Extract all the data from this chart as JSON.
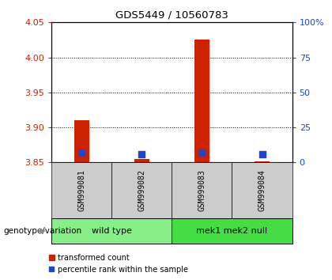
{
  "title": "GDS5449 / 10560783",
  "samples": [
    "GSM999081",
    "GSM999082",
    "GSM999083",
    "GSM999084"
  ],
  "transformed_counts": [
    3.91,
    3.855,
    4.025,
    3.851
  ],
  "percentile_ranks": [
    3.864,
    3.862,
    3.864,
    3.862
  ],
  "bar_base": 3.85,
  "ylim": [
    3.85,
    4.05
  ],
  "yticks": [
    3.85,
    3.9,
    3.95,
    4.0,
    4.05
  ],
  "right_yticks": [
    0,
    25,
    50,
    75,
    100
  ],
  "groups": [
    {
      "label": "wild type",
      "samples": [
        0,
        1
      ]
    },
    {
      "label": "mek1 mek2 null",
      "samples": [
        2,
        3
      ]
    }
  ],
  "group_label_prefix": "genotype/variation",
  "bar_color": "#cc2200",
  "blue_color": "#2244cc",
  "left_axis_color": "#cc2200",
  "right_axis_color": "#2244cc",
  "sample_area_color": "#cccccc",
  "group_wt_color": "#88ee88",
  "group_mek_color": "#44dd44",
  "bar_width": 0.25,
  "blue_sq_size": 30
}
